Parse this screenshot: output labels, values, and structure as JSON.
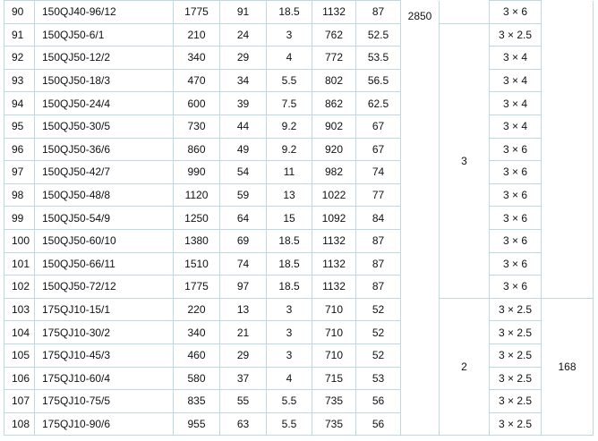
{
  "rows": [
    [
      "90",
      "150QJ40-96/12",
      "1775",
      "91",
      "18.5",
      "1132",
      "87",
      "3 × 6"
    ],
    [
      "91",
      "150QJ50-6/1",
      "210",
      "24",
      "3",
      "762",
      "52.5",
      "3 × 2.5"
    ],
    [
      "92",
      "150QJ50-12/2",
      "340",
      "29",
      "4",
      "772",
      "53.5",
      "3 × 4"
    ],
    [
      "93",
      "150QJ50-18/3",
      "470",
      "34",
      "5.5",
      "802",
      "56.5",
      "3 × 4"
    ],
    [
      "94",
      "150QJ50-24/4",
      "600",
      "39",
      "7.5",
      "862",
      "62.5",
      "3 × 4"
    ],
    [
      "95",
      "150QJ50-30/5",
      "730",
      "44",
      "9.2",
      "902",
      "67",
      "3 × 4"
    ],
    [
      "96",
      "150QJ50-36/6",
      "860",
      "49",
      "9.2",
      "920",
      "67",
      "3 × 6"
    ],
    [
      "97",
      "150QJ50-42/7",
      "990",
      "54",
      "11",
      "982",
      "74",
      "3 × 6"
    ],
    [
      "98",
      "150QJ50-48/8",
      "1120",
      "59",
      "13",
      "1022",
      "77",
      "3 × 6"
    ],
    [
      "99",
      "150QJ50-54/9",
      "1250",
      "64",
      "15",
      "1092",
      "84",
      "3 × 6"
    ],
    [
      "100",
      "150QJ50-60/10",
      "1380",
      "69",
      "18.5",
      "1132",
      "87",
      "3 × 6"
    ],
    [
      "101",
      "150QJ50-66/11",
      "1510",
      "74",
      "18.5",
      "1132",
      "87",
      "3 × 6"
    ],
    [
      "102",
      "150QJ50-72/12",
      "1775",
      "97",
      "18.5",
      "1132",
      "87",
      "3 × 6"
    ],
    [
      "103",
      "175QJ10-15/1",
      "220",
      "13",
      "3",
      "710",
      "52",
      "3 × 2.5"
    ],
    [
      "104",
      "175QJ10-30/2",
      "340",
      "21",
      "3",
      "710",
      "52",
      "3 × 2.5"
    ],
    [
      "105",
      "175QJ10-45/3",
      "460",
      "29",
      "3",
      "710",
      "52",
      "3 × 2.5"
    ],
    [
      "106",
      "175QJ10-60/4",
      "580",
      "37",
      "4",
      "715",
      "53",
      "3 × 2.5"
    ],
    [
      "107",
      "175QJ10-75/5",
      "835",
      "55",
      "5.5",
      "735",
      "56",
      "3 × 2.5"
    ],
    [
      "108",
      "175QJ10-90/6",
      "955",
      "63",
      "5.5",
      "735",
      "56",
      "3 × 2.5"
    ]
  ],
  "merged": {
    "speed": "2850",
    "group_150qj50": "3",
    "group_175qj10": "2",
    "group_175qj10_value": "168"
  }
}
